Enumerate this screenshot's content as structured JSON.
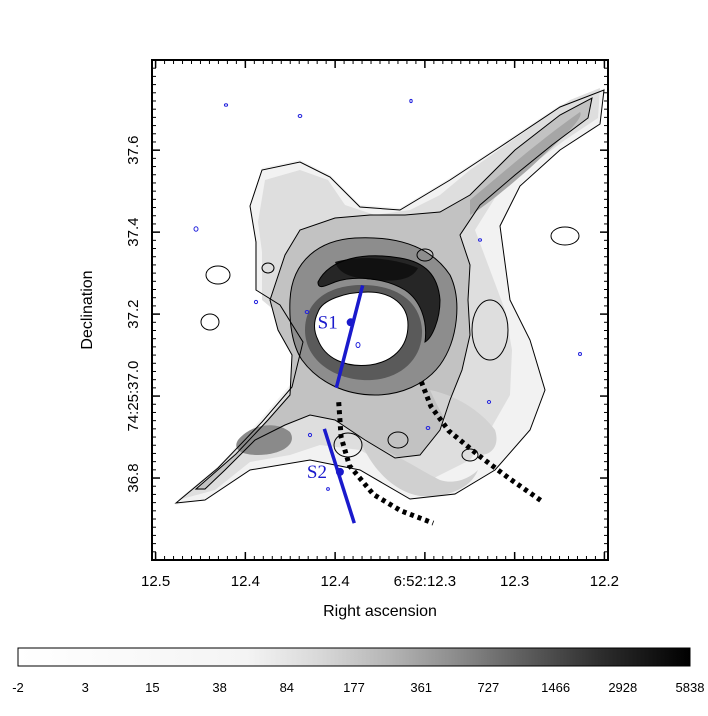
{
  "chart_data": {
    "type": "heatmap",
    "xlabel": "Right ascension",
    "ylabel": "Declination",
    "x_ticks": [
      {
        "label": "12.5",
        "value": 12.5
      },
      {
        "label": "12.4",
        "value": 12.425
      },
      {
        "label": "12.4",
        "value": 12.35
      },
      {
        "label": "6:52:12.3",
        "value": 12.275
      },
      {
        "label": "12.3",
        "value": 12.2
      },
      {
        "label": "12.2",
        "value": 12.125
      }
    ],
    "xlim": [
      12.503,
      12.122
    ],
    "y_ticks": [
      {
        "label": "36.8",
        "value": 36.8
      },
      {
        "label": "74:25:37.0",
        "value": 37.0
      },
      {
        "label": "37.2",
        "value": 37.2
      },
      {
        "label": "37.4",
        "value": 37.4
      },
      {
        "label": "37.6",
        "value": 37.6
      }
    ],
    "ylim": [
      36.6,
      37.82
    ],
    "colorbar": {
      "ticks": [
        "-2",
        "3",
        "15",
        "38",
        "84",
        "177",
        "361",
        "727",
        "1466",
        "2928",
        "5838"
      ],
      "colormap": "grayscale (white to black)"
    },
    "slits": [
      {
        "label": "S1",
        "x": [
          12.349,
          12.327
        ],
        "y": [
          37.02,
          37.27
        ],
        "center": [
          12.337,
          37.18
        ]
      },
      {
        "label": "S2",
        "x": [
          12.359,
          12.334
        ],
        "y": [
          36.92,
          36.69
        ],
        "center": [
          12.346,
          36.815
        ]
      }
    ],
    "dotted_arcs": [
      {
        "x": [
          12.347,
          12.345,
          12.338,
          12.318,
          12.295,
          12.268
        ],
        "y": [
          36.985,
          36.9,
          36.83,
          36.76,
          36.72,
          36.69
        ]
      },
      {
        "x": [
          12.278,
          12.27,
          12.255,
          12.23,
          12.205,
          12.178
        ],
        "y": [
          37.035,
          36.975,
          36.915,
          36.855,
          36.8,
          36.745
        ]
      }
    ],
    "grid": false,
    "contours": true
  },
  "colors": {
    "slit": "#1a1acc",
    "contour": "#000000",
    "blue_contour": "#2222dd"
  }
}
